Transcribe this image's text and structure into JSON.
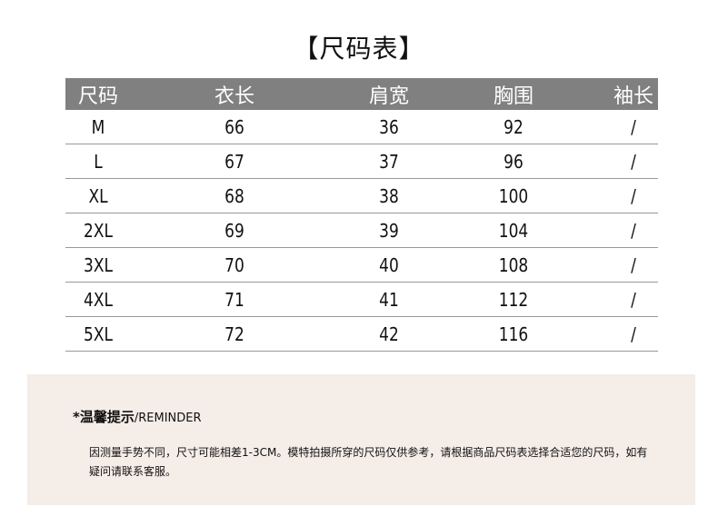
{
  "title": "【尺码表】",
  "table": {
    "headers": [
      "尺码",
      "衣长",
      "肩宽",
      "胸围",
      "袖长"
    ],
    "rows": [
      [
        "M",
        "66",
        "36",
        "92",
        "/"
      ],
      [
        "L",
        "67",
        "37",
        "96",
        "/"
      ],
      [
        "XL",
        "68",
        "38",
        "100",
        "/"
      ],
      [
        "2XL",
        "69",
        "39",
        "104",
        "/"
      ],
      [
        "3XL",
        "70",
        "40",
        "108",
        "/"
      ],
      [
        "4XL",
        "71",
        "41",
        "112",
        "/"
      ],
      [
        "5XL",
        "72",
        "42",
        "116",
        "/"
      ]
    ]
  },
  "reminder": {
    "title": "*温馨提示",
    "title_en": "/REMINDER",
    "text": "因测量手势不同，尺寸可能相差1-3CM。模特拍摄所穿的尺码仅供参考，请根据商品尺码表选择合适您的尺码，如有疑问请联系客服。"
  },
  "colors": {
    "header_bg": "#808080",
    "note_bg": "#f5ede8"
  }
}
